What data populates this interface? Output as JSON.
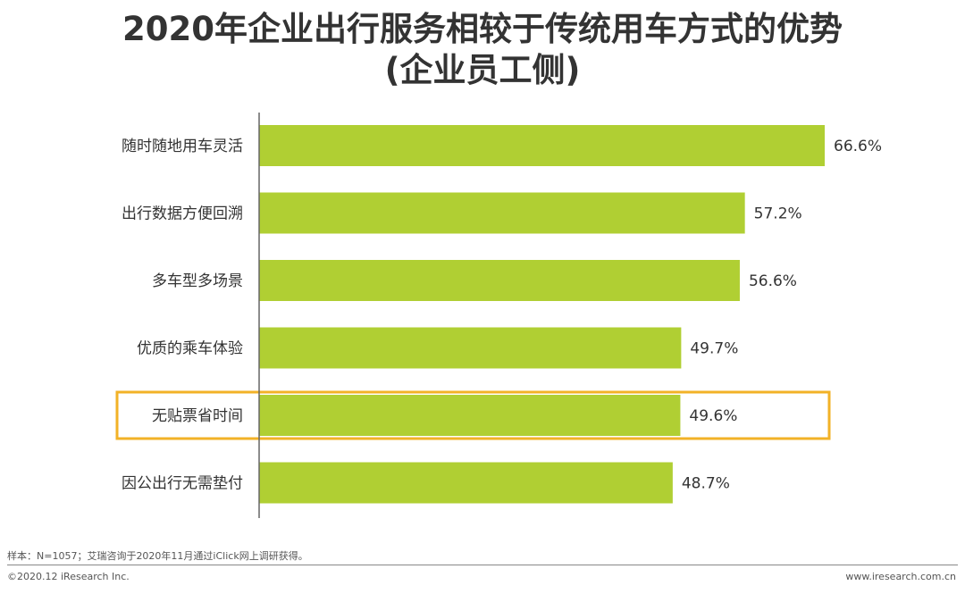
{
  "chart_data": {
    "type": "bar",
    "orientation": "horizontal",
    "title": "2020年企业出行服务相较于传统用车方式的优势",
    "subtitle": "(企业员工侧)",
    "categories": [
      "随时随地用车灵活",
      "出行数据方便回溯",
      "多车型多场景",
      "优质的乘车体验",
      "无贴票省时间",
      "因公出行无需垫付"
    ],
    "values": [
      66.6,
      57.2,
      56.6,
      49.7,
      49.6,
      48.7
    ],
    "value_labels": [
      "66.6%",
      "57.2%",
      "56.6%",
      "49.7%",
      "49.6%",
      "48.7%"
    ],
    "xlim": [
      0,
      70
    ],
    "highlighted_category": "无贴票省时间",
    "bar_color": "#b0cf33",
    "highlight_color": "#f2b227",
    "grid": false,
    "legend": "none"
  },
  "footer": {
    "source": "样本：N=1057；艾瑞咨询于2020年11月通过iClick网上调研获得。",
    "copyright": "©2020.12 iResearch Inc.",
    "website": "www.iresearch.com.cn"
  }
}
